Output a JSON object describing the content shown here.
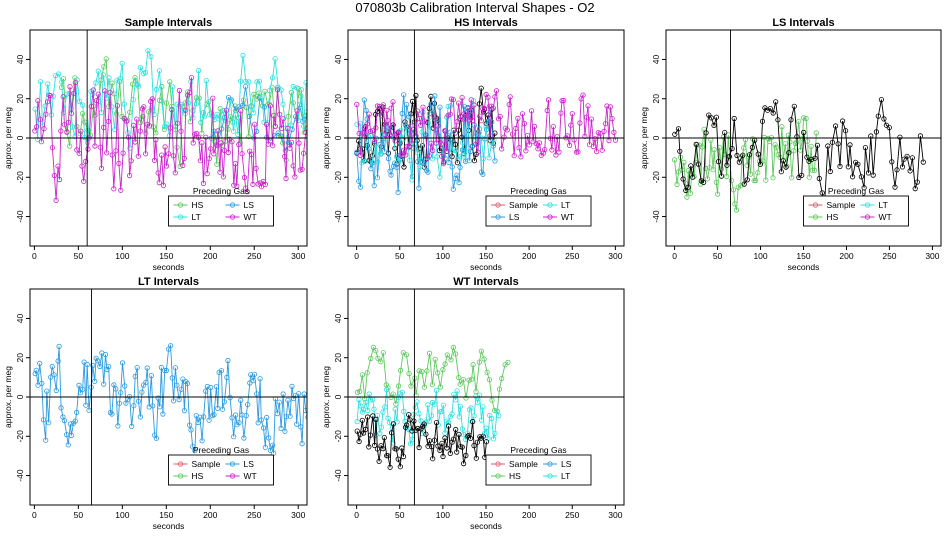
{
  "figure_title": "070803b   Calibration Interval Shapes - O2",
  "colors": {
    "Sample": "#000000",
    "HS": "#5cc85c",
    "LS": "#2b9be0",
    "LT": "#2ee0e0",
    "WT": "#cc22cc",
    "SampleLegend": "#e05a6a"
  },
  "chart_data": [
    {
      "type": "line",
      "title": "Sample Intervals",
      "xlabel": "seconds",
      "ylabel": "approx. per meg",
      "xlim": [
        -5,
        310
      ],
      "ylim": [
        -55,
        55
      ],
      "xticks": [
        0,
        50,
        100,
        150,
        200,
        250,
        300
      ],
      "yticks": [
        -40,
        -20,
        0,
        20,
        40
      ],
      "vline": 60,
      "legend": {
        "title": "Preceding Gas",
        "entries": [
          "HS",
          "LS",
          "LT",
          "WT"
        ]
      },
      "series": [
        {
          "name": "HS",
          "seed": 11,
          "start": 30,
          "end": 310,
          "step": 3,
          "mean": 10,
          "amp": 40
        },
        {
          "name": "LS",
          "seed": 12,
          "start": 200,
          "end": 310,
          "step": 4,
          "mean": 10,
          "amp": 30
        },
        {
          "name": "LT",
          "seed": 13,
          "start": 0,
          "end": 310,
          "step": 3,
          "mean": 20,
          "amp": 40
        },
        {
          "name": "WT",
          "seed": 14,
          "start": 0,
          "end": 310,
          "step": 2,
          "mean": 0,
          "amp": 50
        }
      ]
    },
    {
      "type": "line",
      "title": "HS Intervals",
      "xlabel": "seconds",
      "ylabel": "approx. per meg",
      "xlim": [
        -10,
        310
      ],
      "ylim": [
        -55,
        55
      ],
      "xticks": [
        0,
        50,
        100,
        150,
        200,
        250,
        300
      ],
      "yticks": [
        -40,
        -20,
        0,
        20,
        40
      ],
      "vline": 67,
      "legend": {
        "title": "Preceding Gas",
        "entries": [
          "Sample",
          "LT",
          "LS",
          "WT"
        ]
      },
      "series": [
        {
          "name": "Sample",
          "seed": 21,
          "start": 0,
          "end": 160,
          "step": 2,
          "mean": 5,
          "amp": 35
        },
        {
          "name": "LS",
          "seed": 22,
          "start": 0,
          "end": 160,
          "step": 2,
          "mean": 0,
          "amp": 45
        },
        {
          "name": "LT",
          "seed": 23,
          "start": 0,
          "end": 160,
          "step": 3,
          "mean": 0,
          "amp": 35
        },
        {
          "name": "WT",
          "seed": 24,
          "start": 0,
          "end": 300,
          "step": 2,
          "mean": 5,
          "amp": 30
        }
      ]
    },
    {
      "type": "line",
      "title": "LS Intervals",
      "xlabel": "seconds",
      "ylabel": "approx. per meg",
      "xlim": [
        -10,
        310
      ],
      "ylim": [
        -55,
        55
      ],
      "xticks": [
        0,
        50,
        100,
        150,
        200,
        250,
        300
      ],
      "yticks": [
        -40,
        -20,
        0,
        20,
        40
      ],
      "vline": 65,
      "legend": {
        "title": "Preceding Gas",
        "entries": [
          "Sample",
          "LT",
          "HS",
          "WT"
        ]
      },
      "series": [
        {
          "name": "HS",
          "seed": 31,
          "start": 0,
          "end": 165,
          "step": 2,
          "mean": -10,
          "amp": 35
        },
        {
          "name": "Sample",
          "seed": 32,
          "start": 0,
          "end": 290,
          "step": 3,
          "mean": -5,
          "amp": 40
        }
      ]
    },
    {
      "type": "line",
      "title": "LT Intervals",
      "xlabel": "seconds",
      "ylabel": "approx. per meg",
      "xlim": [
        -5,
        310
      ],
      "ylim": [
        -55,
        55
      ],
      "xticks": [
        0,
        50,
        100,
        150,
        200,
        250,
        300
      ],
      "yticks": [
        -40,
        -20,
        0,
        20,
        40
      ],
      "vline": 65,
      "legend": {
        "title": "Preceding Gas",
        "entries": [
          "Sample",
          "LS",
          "HS",
          "WT"
        ]
      },
      "series": [
        {
          "name": "LS",
          "seed": 41,
          "start": 0,
          "end": 310,
          "step": 2,
          "mean": 0,
          "amp": 40
        }
      ]
    },
    {
      "type": "line",
      "title": "WT Intervals",
      "xlabel": "seconds",
      "ylabel": "approx. per meg",
      "xlim": [
        -10,
        310
      ],
      "ylim": [
        -55,
        55
      ],
      "xticks": [
        0,
        50,
        100,
        150,
        200,
        250,
        300
      ],
      "yticks": [
        -40,
        -20,
        0,
        20,
        40
      ],
      "vline": 67,
      "legend": {
        "title": "Preceding Gas",
        "entries": [
          "Sample",
          "LS",
          "HS",
          "LT"
        ]
      },
      "series": [
        {
          "name": "HS",
          "seed": 51,
          "start": 0,
          "end": 175,
          "step": 3,
          "mean": 10,
          "amp": 25
        },
        {
          "name": "LT",
          "seed": 52,
          "start": 0,
          "end": 165,
          "step": 2,
          "mean": -10,
          "amp": 25
        },
        {
          "name": "Sample",
          "seed": 53,
          "start": 0,
          "end": 150,
          "step": 2,
          "mean": -20,
          "amp": 25
        }
      ]
    }
  ]
}
